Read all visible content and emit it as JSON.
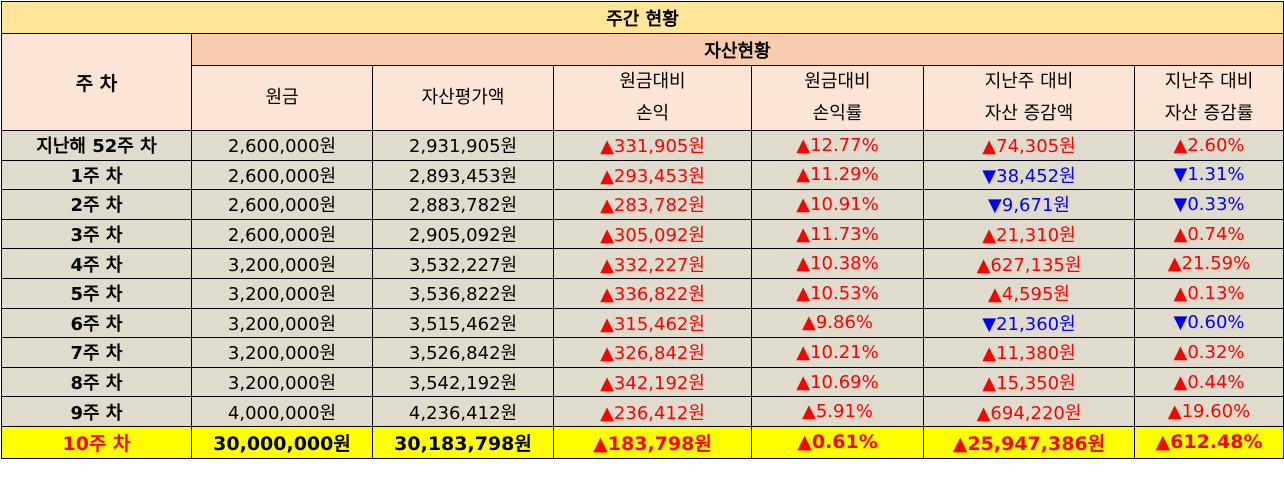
{
  "title": "주간 현황",
  "header": {
    "week": "주 차",
    "group": "자산현황",
    "cols": [
      {
        "l1": "원금",
        "l2": ""
      },
      {
        "l1": "자산평가액",
        "l2": ""
      },
      {
        "l1": "원금대비",
        "l2": "손익"
      },
      {
        "l1": "원금대비",
        "l2": "손익률"
      },
      {
        "l1": "지난주 대비",
        "l2": "자산 증감액"
      },
      {
        "l1": "지난주 대비",
        "l2": "자산 증감률"
      }
    ]
  },
  "rows": [
    {
      "week": "지난해 52주 차",
      "principal": "2,600,000원",
      "asset": "2,931,905원",
      "pl": "▲331,905원",
      "pl_rate": "▲12.77%",
      "wk_amt": "▲74,305원",
      "wk_rate": "▲2.60%",
      "wk_dir": "up"
    },
    {
      "week": "1주 차",
      "principal": "2,600,000원",
      "asset": "2,893,453원",
      "pl": "▲293,453원",
      "pl_rate": "▲11.29%",
      "wk_amt": "▼38,452원",
      "wk_rate": "▼1.31%",
      "wk_dir": "down"
    },
    {
      "week": "2주 차",
      "principal": "2,600,000원",
      "asset": "2,883,782원",
      "pl": "▲283,782원",
      "pl_rate": "▲10.91%",
      "wk_amt": "▼9,671원",
      "wk_rate": "▼0.33%",
      "wk_dir": "down"
    },
    {
      "week": "3주 차",
      "principal": "2,600,000원",
      "asset": "2,905,092원",
      "pl": "▲305,092원",
      "pl_rate": "▲11.73%",
      "wk_amt": "▲21,310원",
      "wk_rate": "▲0.74%",
      "wk_dir": "up"
    },
    {
      "week": "4주 차",
      "principal": "3,200,000원",
      "asset": "3,532,227원",
      "pl": "▲332,227원",
      "pl_rate": "▲10.38%",
      "wk_amt": "▲627,135원",
      "wk_rate": "▲21.59%",
      "wk_dir": "up"
    },
    {
      "week": "5주 차",
      "principal": "3,200,000원",
      "asset": "3,536,822원",
      "pl": "▲336,822원",
      "pl_rate": "▲10.53%",
      "wk_amt": "▲4,595원",
      "wk_rate": "▲0.13%",
      "wk_dir": "up"
    },
    {
      "week": "6주 차",
      "principal": "3,200,000원",
      "asset": "3,515,462원",
      "pl": "▲315,462원",
      "pl_rate": "▲9.86%",
      "wk_amt": "▼21,360원",
      "wk_rate": "▼0.60%",
      "wk_dir": "down"
    },
    {
      "week": "7주 차",
      "principal": "3,200,000원",
      "asset": "3,526,842원",
      "pl": "▲326,842원",
      "pl_rate": "▲10.21%",
      "wk_amt": "▲11,380원",
      "wk_rate": "▲0.32%",
      "wk_dir": "up"
    },
    {
      "week": "8주 차",
      "principal": "3,200,000원",
      "asset": "3,542,192원",
      "pl": "▲342,192원",
      "pl_rate": "▲10.69%",
      "wk_amt": "▲15,350원",
      "wk_rate": "▲0.44%",
      "wk_dir": "up"
    },
    {
      "week": "9주 차",
      "principal": "4,000,000원",
      "asset": "4,236,412원",
      "pl": "▲236,412원",
      "pl_rate": "▲5.91%",
      "wk_amt": "▲694,220원",
      "wk_rate": "▲19.60%",
      "wk_dir": "up"
    }
  ],
  "total": {
    "week": "10주 차",
    "principal": "30,000,000원",
    "asset": "30,183,798원",
    "pl": "▲183,798원",
    "pl_rate": "▲0.61%",
    "wk_amt": "▲25,947,386원",
    "wk_rate": "▲612.48%"
  },
  "colors": {
    "up": "#ff0000",
    "down": "#0000ff",
    "title_bg": "#ffe699",
    "header_bg": "#f8cbad",
    "row_bg": "#e0dccd",
    "total_bg": "#ffff00"
  }
}
